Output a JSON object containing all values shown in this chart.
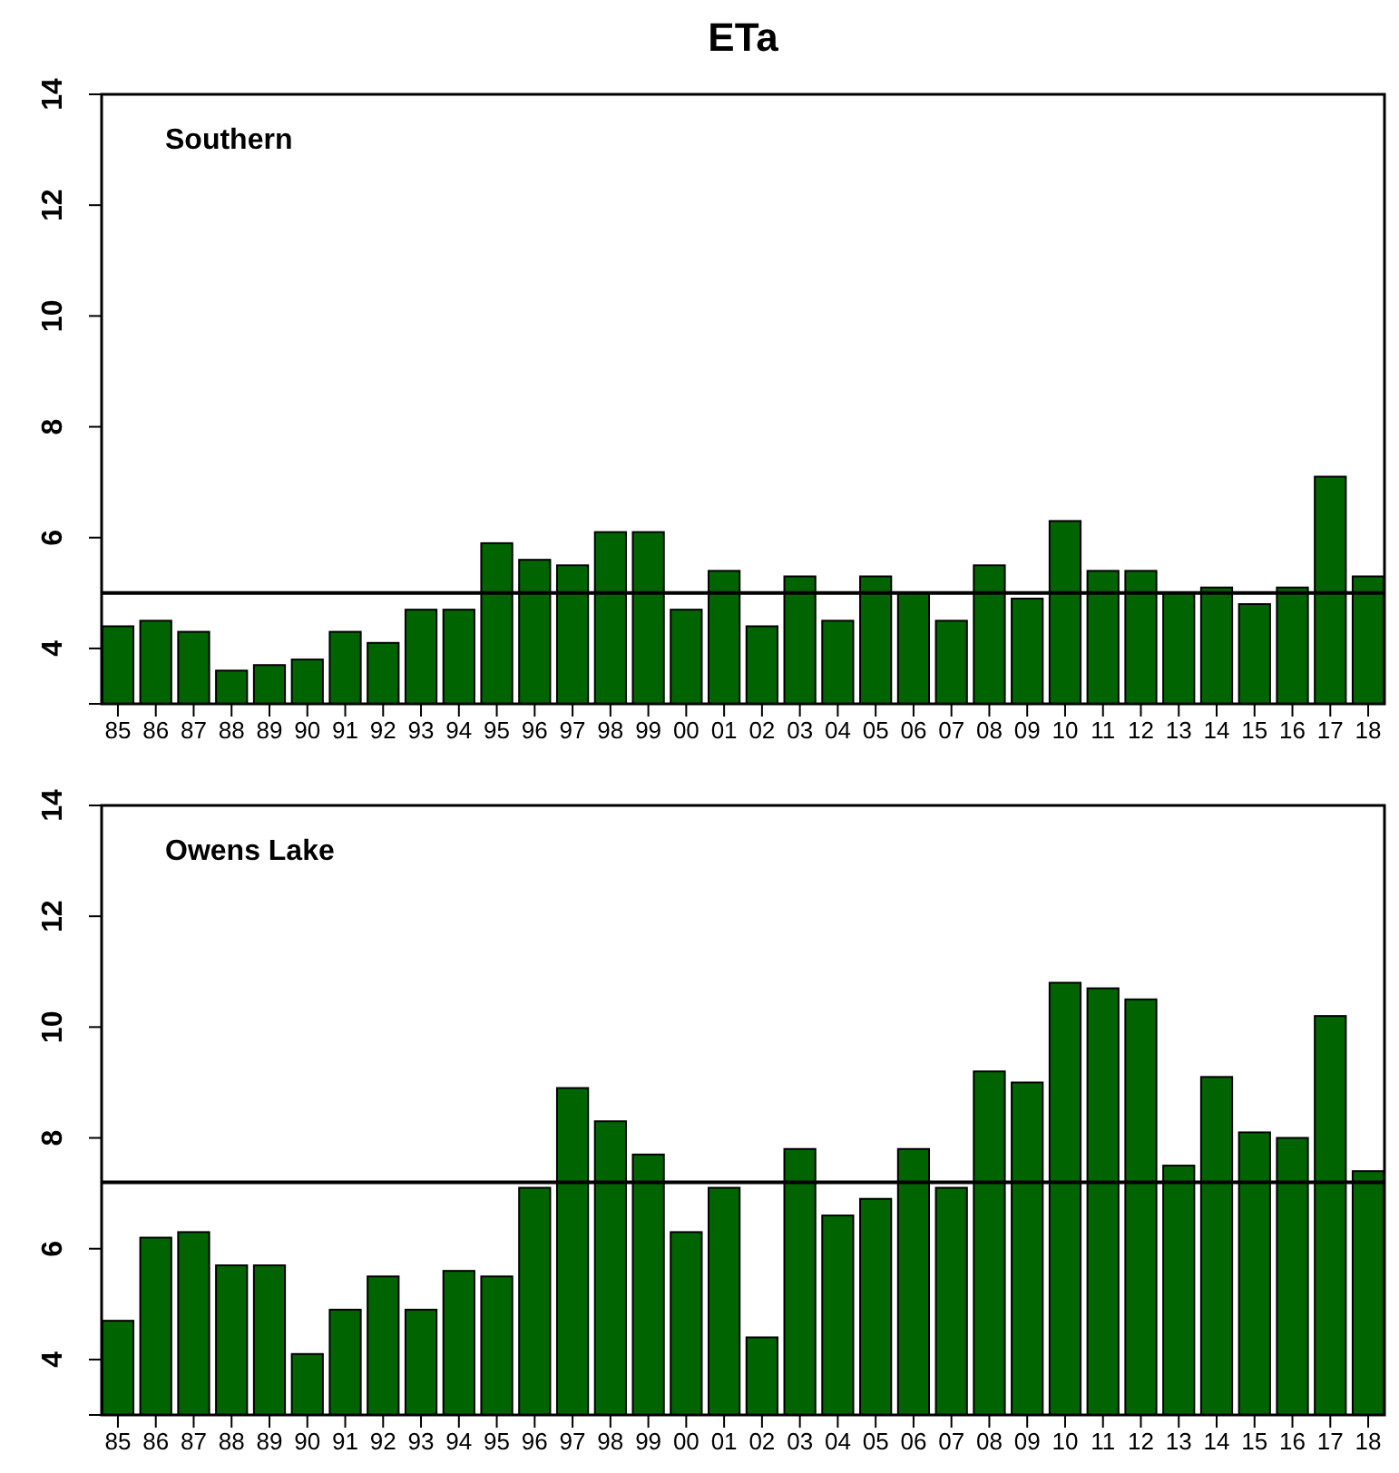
{
  "chart_data": [
    {
      "type": "bar",
      "title": "ETa",
      "annotations": [
        "Southern"
      ],
      "categories": [
        "85",
        "86",
        "87",
        "88",
        "89",
        "90",
        "91",
        "92",
        "93",
        "94",
        "95",
        "96",
        "97",
        "98",
        "99",
        "00",
        "01",
        "02",
        "03",
        "04",
        "05",
        "06",
        "07",
        "08",
        "09",
        "10",
        "11",
        "12",
        "13",
        "14",
        "15",
        "16",
        "17",
        "18"
      ],
      "values": [
        4.4,
        4.5,
        4.3,
        3.6,
        3.7,
        3.8,
        4.3,
        4.1,
        4.7,
        4.7,
        5.9,
        5.6,
        5.5,
        6.1,
        6.1,
        4.7,
        5.4,
        4.4,
        5.3,
        4.5,
        5.3,
        5.0,
        4.5,
        5.5,
        4.9,
        6.3,
        5.4,
        5.4,
        5.0,
        5.1,
        4.8,
        5.1,
        7.1,
        5.3
      ],
      "color": "#006400",
      "ylim": [
        3,
        14
      ],
      "yticks": [
        4,
        6,
        8,
        10,
        12,
        14
      ],
      "grid": false,
      "ref_lines": [
        {
          "axis": "y",
          "value": 5.0,
          "color": "#000000"
        }
      ]
    },
    {
      "type": "bar",
      "annotations": [
        "Owens Lake"
      ],
      "categories": [
        "85",
        "86",
        "87",
        "88",
        "89",
        "90",
        "91",
        "92",
        "93",
        "94",
        "95",
        "96",
        "97",
        "98",
        "99",
        "00",
        "01",
        "02",
        "03",
        "04",
        "05",
        "06",
        "07",
        "08",
        "09",
        "10",
        "11",
        "12",
        "13",
        "14",
        "15",
        "16",
        "17",
        "18"
      ],
      "values": [
        4.7,
        6.2,
        6.3,
        5.7,
        5.7,
        4.1,
        4.9,
        5.5,
        4.9,
        5.6,
        5.5,
        7.1,
        8.9,
        8.3,
        7.7,
        6.3,
        7.1,
        4.4,
        7.8,
        6.6,
        6.9,
        7.8,
        7.1,
        9.2,
        9.0,
        10.8,
        10.7,
        10.5,
        7.5,
        9.1,
        8.1,
        8.0,
        10.2,
        7.4
      ],
      "color": "#006400",
      "ylim": [
        3,
        14
      ],
      "yticks": [
        4,
        6,
        8,
        10,
        12,
        14
      ],
      "grid": false,
      "ref_lines": [
        {
          "axis": "y",
          "value": 7.2,
          "color": "#000000"
        }
      ]
    }
  ]
}
